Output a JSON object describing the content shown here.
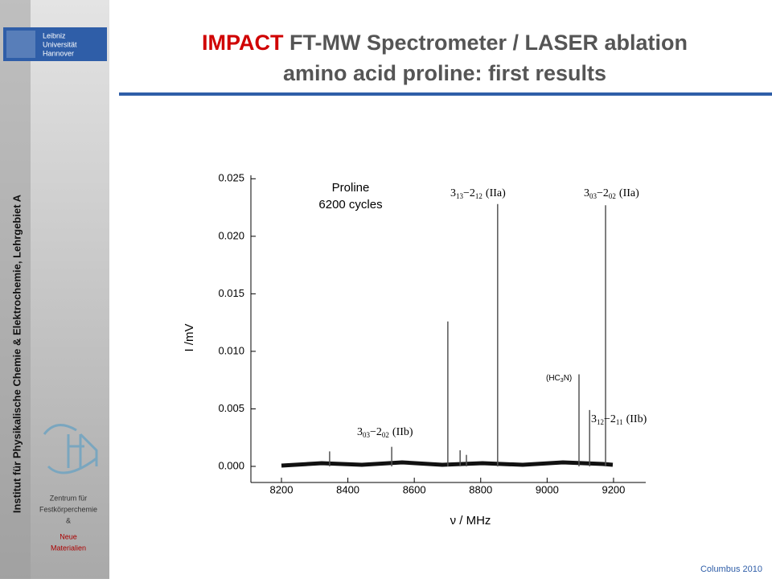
{
  "sidebar": {
    "institute": "Institut für Physikalische Chemie & Elektrochemie, Lehrgebiet A",
    "logo": [
      "Leibniz",
      "Universität",
      "Hannover"
    ],
    "center": [
      "Zentrum für",
      "Festkörperchemie",
      "&",
      "Neue",
      "Materialien"
    ]
  },
  "title": {
    "highlight": "IMPACT",
    "rest": "FT-MW Spectrometer / LASER ablation",
    "line2": "amino acid proline: first results"
  },
  "footer": "Columbus 2010",
  "chart_data": {
    "type": "stem",
    "color": "#555555",
    "x_label": "ν / MHz",
    "y_label": "I /mV",
    "note": [
      "Proline",
      "6200 cycles"
    ],
    "x": [
      8345,
      8532,
      8701,
      8738,
      8757,
      8851,
      9096,
      9128,
      9176
    ],
    "values": [
      0.0013,
      0.0017,
      0.0126,
      0.0014,
      0.001,
      0.0228,
      0.008,
      0.0049,
      0.0227
    ],
    "xlim": [
      8108,
      9297
    ],
    "ylim": [
      -0.0014,
      0.0253
    ],
    "xticks": [
      8200,
      8400,
      8600,
      8800,
      9000,
      9200
    ],
    "yticks": [
      {
        "value": 0,
        "label": "0.000"
      },
      {
        "value": 0.005,
        "label": "0.005"
      },
      {
        "value": 0.01,
        "label": "0.010"
      },
      {
        "value": 0.015,
        "label": "0.015"
      },
      {
        "value": 0.02,
        "label": "0.020"
      },
      {
        "value": 0.025,
        "label": "0.025"
      }
    ],
    "annotations": [
      {
        "j1": "3",
        "k1": "03",
        "j2": "−2",
        "k2": "02",
        "sym": "(IIb)"
      },
      {
        "j1": "3",
        "k1": "13",
        "j2": "−2",
        "k2": "12",
        "sym": "(IIa)"
      },
      {
        "j1": "3",
        "k1": "03",
        "j2": "−2",
        "k2": "02",
        "sym": "(IIa)"
      },
      {
        "j1": "3",
        "k1": "12",
        "j2": "−2",
        "k2": "11",
        "sym": "(IIb)"
      }
    ],
    "species": {
      "a": "(HC",
      "sub": "3",
      "b": "N)"
    }
  }
}
